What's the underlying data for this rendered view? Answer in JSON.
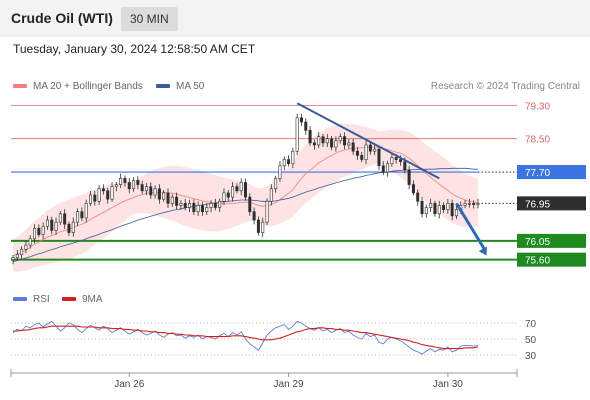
{
  "header": {
    "title": "Crude Oil (WTI)",
    "timeframe": "30 MIN"
  },
  "timestamp": "Tuesday, January 30, 2024 12:58:50 AM CET",
  "legend": {
    "bollinger_label": "MA 20 + Bollinger Bands",
    "ma50_label": "MA 50",
    "copyright": "Research © 2024 Trading Central",
    "rsi_label": "RSI",
    "rsi_ma_label": "9MA"
  },
  "colors": {
    "candle": "#2e2e2e",
    "bollinger": "#f08080",
    "band_fill": "#fde0e0",
    "ma50": "#3a5a9a",
    "trendline": "#3a5a9a",
    "arrow": "#2f6ab8",
    "resistance": "#e06666",
    "pivot": "#3b74e0",
    "support": "#1f8a1f",
    "current": "#2e2e2e",
    "rsi": "#5b7fd6",
    "rsi_ma": "#d42020"
  },
  "chart_data": [
    {
      "type": "candlestick",
      "title": "Crude Oil (WTI)",
      "timeframe": "30 MIN",
      "ylim": [
        75.4,
        79.5
      ],
      "x_ticks": [
        {
          "label": "Jan 26",
          "bar": 27
        },
        {
          "label": "Jan 29",
          "bar": 64
        },
        {
          "label": "Jan 30",
          "bar": 101
        }
      ],
      "levels": [
        {
          "value": 79.3,
          "label": "79.30",
          "kind": "resistance"
        },
        {
          "value": 78.5,
          "label": "78.50",
          "kind": "resistance"
        },
        {
          "value": 77.7,
          "label": "77.70",
          "kind": "pivot"
        },
        {
          "value": 76.95,
          "label": "76.95",
          "kind": "current"
        },
        {
          "value": 76.05,
          "label": "76.05",
          "kind": "support"
        },
        {
          "value": 75.6,
          "label": "75.60",
          "kind": "support"
        }
      ],
      "trendline": {
        "from": {
          "bar": 66,
          "value": 79.35
        },
        "to": {
          "bar": 99,
          "value": 77.55
        }
      },
      "forecast_arrow": {
        "from": {
          "bar": 103,
          "value": 76.95
        },
        "to": {
          "bar": 110,
          "value": 75.7
        }
      },
      "close": [
        75.65,
        75.72,
        75.85,
        75.95,
        76.1,
        76.35,
        76.2,
        76.4,
        76.55,
        76.3,
        76.5,
        76.7,
        76.45,
        76.25,
        76.5,
        76.75,
        76.6,
        76.95,
        77.15,
        77.0,
        77.3,
        77.25,
        77.05,
        77.35,
        77.4,
        77.55,
        77.45,
        77.3,
        77.5,
        77.4,
        77.25,
        77.35,
        77.15,
        77.3,
        77.05,
        77.2,
        76.95,
        77.1,
        76.9,
        76.95,
        76.85,
        76.95,
        76.75,
        76.9,
        76.75,
        76.85,
        76.95,
        76.85,
        77.0,
        77.2,
        77.1,
        77.35,
        77.25,
        77.45,
        77.1,
        76.75,
        76.55,
        76.25,
        76.5,
        77.0,
        77.3,
        77.55,
        77.85,
        78.0,
        77.9,
        78.2,
        79.0,
        78.9,
        78.7,
        78.4,
        78.35,
        78.55,
        78.4,
        78.5,
        78.3,
        78.45,
        78.55,
        78.35,
        78.4,
        78.2,
        78.1,
        78.0,
        78.35,
        78.2,
        78.25,
        77.85,
        77.7,
        77.9,
        78.05,
        78.0,
        77.95,
        77.75,
        77.4,
        77.2,
        77.0,
        76.7,
        76.85,
        76.95,
        76.7,
        76.9,
        76.8,
        76.95,
        76.65,
        76.8,
        76.9,
        76.95,
        76.95,
        76.92,
        76.95
      ],
      "ma20": [
        75.7,
        75.73,
        75.78,
        75.83,
        75.89,
        75.97,
        76.02,
        76.08,
        76.14,
        76.18,
        76.22,
        76.27,
        76.3,
        76.33,
        76.37,
        76.42,
        76.45,
        76.5,
        76.57,
        76.62,
        76.68,
        76.73,
        76.79,
        76.85,
        76.9,
        76.96,
        77.01,
        77.05,
        77.09,
        77.13,
        77.16,
        77.19,
        77.2,
        77.21,
        77.22,
        77.22,
        77.2,
        77.19,
        77.17,
        77.14,
        77.12,
        77.09,
        77.06,
        77.04,
        77.01,
        76.99,
        76.97,
        76.95,
        76.94,
        76.94,
        76.94,
        76.95,
        76.96,
        76.97,
        76.98,
        76.97,
        76.94,
        76.9,
        76.88,
        76.89,
        76.92,
        76.97,
        77.04,
        77.12,
        77.19,
        77.28,
        77.42,
        77.55,
        77.66,
        77.75,
        77.83,
        77.92,
        77.98,
        78.05,
        78.1,
        78.15,
        78.2,
        78.23,
        78.25,
        78.27,
        78.28,
        78.28,
        78.3,
        78.3,
        78.3,
        78.29,
        78.26,
        78.24,
        78.21,
        78.18,
        78.15,
        78.1,
        78.03,
        77.95,
        77.86,
        77.75,
        77.66,
        77.58,
        77.49,
        77.41,
        77.33,
        77.26,
        77.18,
        77.12,
        77.07,
        77.03,
        77.0,
        76.98,
        76.96
      ],
      "ma50": [
        75.55,
        75.58,
        75.61,
        75.64,
        75.67,
        75.71,
        75.74,
        75.77,
        75.81,
        75.84,
        75.87,
        75.91,
        75.94,
        75.97,
        76.0,
        76.03,
        76.06,
        76.1,
        76.14,
        76.17,
        76.21,
        76.25,
        76.28,
        76.32,
        76.36,
        76.4,
        76.44,
        76.47,
        76.51,
        76.55,
        76.58,
        76.61,
        76.64,
        76.67,
        76.7,
        76.73,
        76.75,
        76.78,
        76.8,
        76.82,
        76.84,
        76.86,
        76.88,
        76.9,
        76.91,
        76.93,
        76.95,
        76.96,
        76.98,
        76.99,
        77.0,
        77.01,
        77.02,
        77.03,
        77.03,
        77.03,
        77.02,
        77.01,
        77.0,
        77.0,
        77.0,
        77.01,
        77.03,
        77.05,
        77.07,
        77.1,
        77.14,
        77.18,
        77.22,
        77.25,
        77.28,
        77.32,
        77.35,
        77.38,
        77.41,
        77.44,
        77.47,
        77.5,
        77.52,
        77.55,
        77.57,
        77.59,
        77.62,
        77.64,
        77.66,
        77.68,
        77.69,
        77.7,
        77.72,
        77.73,
        77.74,
        77.75,
        77.75,
        77.76,
        77.76,
        77.76,
        77.77,
        77.77,
        77.77,
        77.78,
        77.78,
        77.78,
        77.79,
        77.79,
        77.79,
        77.79,
        77.78,
        77.77,
        77.77
      ],
      "bb_width": 0.55
    },
    {
      "type": "line",
      "title": "RSI",
      "ylim": [
        20,
        80
      ],
      "y_ticks": [
        70,
        50,
        30
      ],
      "series": [
        {
          "name": "RSI",
          "values": [
            58,
            62,
            60,
            66,
            64,
            68,
            70,
            65,
            69,
            72,
            66,
            60,
            64,
            70,
            68,
            62,
            58,
            63,
            67,
            64,
            61,
            66,
            63,
            58,
            61,
            64,
            60,
            56,
            59,
            62,
            58,
            55,
            57,
            60,
            55,
            52,
            56,
            58,
            54,
            55,
            51,
            54,
            52,
            55,
            50,
            53,
            52,
            50,
            54,
            57,
            53,
            58,
            55,
            59,
            50,
            44,
            40,
            36,
            45,
            55,
            60,
            64,
            66,
            68,
            62,
            66,
            72,
            70,
            66,
            63,
            61,
            64,
            60,
            62,
            58,
            61,
            63,
            58,
            60,
            55,
            52,
            50,
            57,
            53,
            55,
            46,
            44,
            50,
            52,
            50,
            48,
            44,
            40,
            36,
            34,
            31,
            35,
            38,
            34,
            37,
            36,
            40,
            34,
            36,
            41,
            42,
            42,
            41,
            42
          ]
        },
        {
          "name": "9MA",
          "values": [
            60,
            60,
            61,
            61,
            62,
            63,
            64,
            64,
            65,
            66,
            66,
            66,
            66,
            66,
            66,
            66,
            65,
            65,
            65,
            65,
            64,
            64,
            64,
            63,
            63,
            63,
            62,
            62,
            61,
            61,
            60,
            60,
            59,
            59,
            58,
            58,
            57,
            57,
            56,
            56,
            55,
            55,
            54,
            54,
            54,
            53,
            53,
            53,
            53,
            53,
            53,
            54,
            54,
            54,
            53,
            52,
            51,
            50,
            49,
            49,
            49,
            50,
            51,
            53,
            55,
            57,
            59,
            60,
            62,
            63,
            63,
            64,
            64,
            63,
            63,
            62,
            62,
            61,
            61,
            60,
            59,
            58,
            58,
            57,
            56,
            55,
            54,
            53,
            52,
            51,
            50,
            49,
            48,
            46,
            45,
            43,
            42,
            41,
            40,
            39,
            38,
            38,
            38,
            38,
            38,
            39,
            39,
            39,
            40
          ]
        }
      ]
    }
  ]
}
